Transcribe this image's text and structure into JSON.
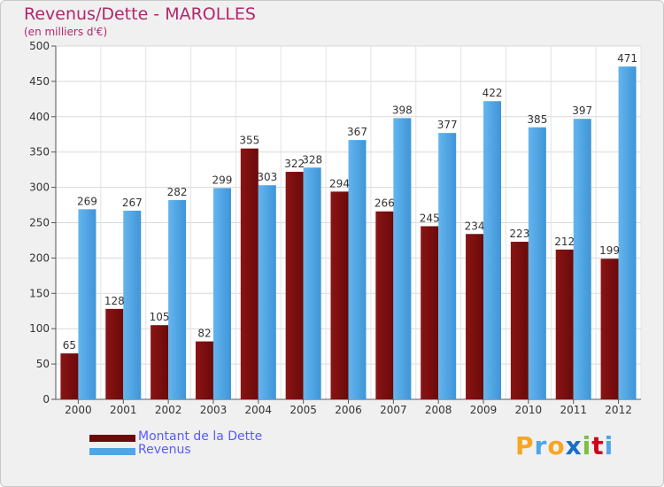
{
  "header": {
    "title": "Revenus/Dette - MAROLLES",
    "subtitle": "(en milliers d'€)"
  },
  "legend": {
    "items": [
      {
        "label": "Montant de la Dette",
        "color": "#6b0a0a"
      },
      {
        "label": "Revenus",
        "color": "#4fa6e6"
      }
    ]
  },
  "logo": {
    "letters": [
      "P",
      "r",
      "o",
      "x",
      "i",
      "t",
      "i"
    ],
    "colors": [
      "#f5a623",
      "#4fa6e6",
      "#f5a623",
      "#1a6fc4",
      "#7bc043",
      "#d0021b",
      "#4fa6e6"
    ]
  },
  "chart_data": {
    "type": "bar",
    "title": "Revenus/Dette - MAROLLES",
    "subtitle": "(en milliers d'€)",
    "xlabel": "",
    "ylabel": "",
    "ylim": [
      0,
      500
    ],
    "yticks": [
      0,
      50,
      100,
      150,
      200,
      250,
      300,
      350,
      400,
      450,
      500
    ],
    "grid": true,
    "legend_position": "bottom-left",
    "categories": [
      "2000",
      "2001",
      "2002",
      "2003",
      "2004",
      "2005",
      "2006",
      "2007",
      "2008",
      "2009",
      "2010",
      "2011",
      "2012"
    ],
    "series": [
      {
        "name": "Montant de la Dette",
        "values": [
          65,
          128,
          105,
          82,
          355,
          322,
          294,
          266,
          245,
          234,
          223,
          212,
          199
        ],
        "color": "#6b0a0a"
      },
      {
        "name": "Revenus",
        "values": [
          269,
          267,
          282,
          299,
          303,
          328,
          367,
          398,
          377,
          422,
          385,
          397,
          471
        ],
        "color": "#4fa6e6"
      }
    ]
  }
}
